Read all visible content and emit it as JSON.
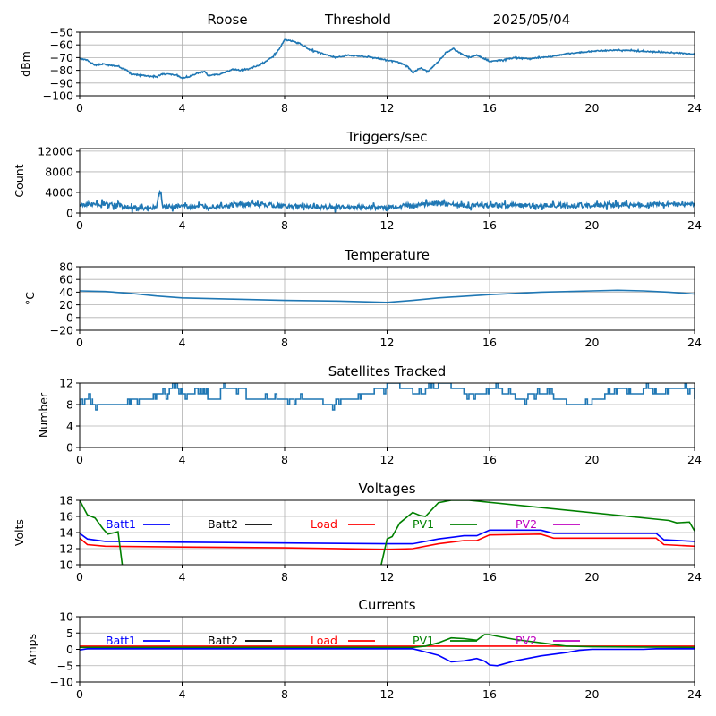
{
  "header": {
    "left": "Roose",
    "center": "Threshold",
    "right": "2025/05/04"
  },
  "colors": {
    "series": "#1f77b4",
    "grid": "#b0b0b0"
  },
  "chart_data": [
    {
      "type": "line",
      "title": "",
      "ylabel": "dBm",
      "xlim": [
        0,
        24
      ],
      "ylim": [
        -100,
        -50
      ],
      "xticks": [
        "0",
        "4",
        "8",
        "12",
        "16",
        "20",
        "24"
      ],
      "yticks": [
        "−100",
        "−90",
        "−80",
        "−70",
        "−60",
        "−50"
      ],
      "series": [
        {
          "color": "#1f77b4",
          "noise": 0.4,
          "x": [
            0,
            0.3,
            0.6,
            0.9,
            1.2,
            1.5,
            1.8,
            2,
            2.5,
            3,
            3.2,
            3.5,
            3.8,
            4,
            4.3,
            4.6,
            4.9,
            5,
            5.5,
            6,
            6.3,
            6.6,
            7,
            7.5,
            7.8,
            8,
            8.3,
            8.6,
            9,
            9.5,
            10,
            10.5,
            11,
            11.5,
            12,
            12.5,
            12.8,
            13,
            13.3,
            13.6,
            14,
            14.3,
            14.6,
            14.9,
            15.2,
            15.5,
            16,
            16.5,
            17,
            17.5,
            18,
            18.5,
            19,
            20,
            21,
            22,
            23,
            24
          ],
          "y": [
            -71,
            -72,
            -76,
            -75,
            -76,
            -77,
            -79,
            -83,
            -84,
            -85,
            -83,
            -83,
            -84,
            -86,
            -85,
            -82,
            -81,
            -84,
            -83,
            -79,
            -80,
            -79,
            -76,
            -70,
            -63,
            -56,
            -57,
            -59,
            -64,
            -67,
            -70,
            -68,
            -69,
            -70,
            -72,
            -74,
            -77,
            -82,
            -78,
            -81,
            -73,
            -66,
            -63,
            -67,
            -70,
            -68,
            -73,
            -72,
            -70,
            -71,
            -70,
            -69,
            -67,
            -65,
            -64,
            -65,
            -66,
            -67
          ]
        }
      ]
    },
    {
      "type": "line",
      "title": "Triggers/sec",
      "ylabel": "Count",
      "xlim": [
        0,
        24
      ],
      "ylim": [
        0,
        12500
      ],
      "xticks": [
        "0",
        "4",
        "8",
        "12",
        "16",
        "20",
        "24"
      ],
      "yticks": [
        "0",
        "4000",
        "8000",
        "12000"
      ],
      "ytick_values": [
        0,
        4000,
        8000,
        12000
      ],
      "series": [
        {
          "color": "#1f77b4",
          "noise": 450,
          "x": [
            0,
            1,
            2,
            3,
            3.15,
            3.25,
            4,
            5,
            6,
            7,
            8,
            9,
            10,
            11,
            12,
            13,
            14,
            15,
            16,
            17,
            18,
            19,
            20,
            21,
            22,
            23,
            24
          ],
          "y": [
            1500,
            1800,
            1000,
            1100,
            4200,
            1200,
            1300,
            1200,
            1500,
            1700,
            1300,
            1200,
            1100,
            1200,
            1000,
            1500,
            2000,
            1400,
            1500,
            1500,
            1400,
            1500,
            1500,
            1600,
            1600,
            1800,
            1600
          ]
        }
      ]
    },
    {
      "type": "line",
      "title": "Temperature",
      "ylabel": "°C",
      "xlim": [
        0,
        24
      ],
      "ylim": [
        -20,
        80
      ],
      "xticks": [
        "0",
        "4",
        "8",
        "12",
        "16",
        "20",
        "24"
      ],
      "yticks": [
        "−20",
        "0",
        "20",
        "40",
        "60",
        "80"
      ],
      "ytick_values": [
        -20,
        0,
        20,
        40,
        60,
        80
      ],
      "series": [
        {
          "color": "#1f77b4",
          "noise": 0,
          "x": [
            0,
            1,
            2,
            3,
            4,
            6,
            8,
            10,
            11,
            12,
            13,
            14,
            16,
            18,
            20,
            21,
            22,
            23,
            24
          ],
          "y": [
            42,
            41,
            38,
            34,
            31,
            29,
            27,
            26,
            25,
            24,
            27,
            31,
            36,
            40,
            42,
            43,
            42,
            40,
            37
          ]
        }
      ]
    },
    {
      "type": "line",
      "title": "Satellites Tracked",
      "ylabel": "Number",
      "xlim": [
        0,
        24
      ],
      "ylim": [
        0,
        12
      ],
      "xticks": [
        "0",
        "4",
        "8",
        "12",
        "16",
        "20",
        "24"
      ],
      "yticks": [
        "0",
        "4",
        "8",
        "12"
      ],
      "ytick_values": [
        0,
        4,
        8,
        12
      ],
      "series": [
        {
          "color": "#1f77b4",
          "step": true,
          "x": [
            0,
            0.2,
            0.5,
            1,
            1.5,
            2,
            2.5,
            3,
            3.5,
            4,
            4.5,
            5,
            5.5,
            6,
            6.5,
            7,
            7.5,
            8,
            8.5,
            9,
            9.5,
            10,
            10.5,
            11,
            11.5,
            12,
            12.5,
            13,
            13.5,
            14,
            14.5,
            15,
            15.5,
            16,
            16.5,
            17,
            17.5,
            18,
            18.5,
            19,
            19.5,
            20,
            20.5,
            21,
            21.5,
            22,
            22.5,
            23,
            23.5,
            24
          ],
          "y": [
            8,
            9,
            8,
            8,
            8,
            9,
            9,
            10,
            11,
            10,
            11,
            9,
            11,
            11,
            9,
            9,
            9,
            9,
            9,
            9,
            8,
            9,
            9,
            10,
            11,
            12,
            11,
            10,
            11,
            12,
            11,
            10,
            10,
            11,
            10,
            9,
            10,
            10,
            9,
            8,
            8,
            9,
            10,
            11,
            10,
            11,
            10,
            11,
            11,
            9
          ]
        }
      ]
    },
    {
      "type": "line",
      "title": "Voltages",
      "ylabel": "Volts",
      "xlim": [
        0,
        24
      ],
      "ylim": [
        10,
        18
      ],
      "xticks": [
        "0",
        "4",
        "8",
        "12",
        "16",
        "20",
        "24"
      ],
      "yticks": [
        "10",
        "12",
        "14",
        "16",
        "18"
      ],
      "ytick_values": [
        10,
        12,
        14,
        16,
        18
      ],
      "legend": [
        "Batt1",
        "Batt2",
        "Load",
        "PV1",
        "PV2"
      ],
      "series": [
        {
          "name": "Batt1",
          "color": "#0000ff",
          "noise": 0,
          "x": [
            0,
            0.3,
            1,
            4,
            8,
            12,
            13,
            14,
            15,
            15.5,
            16,
            18,
            18.5,
            20,
            22.5,
            22.8,
            24
          ],
          "y": [
            13.9,
            13.2,
            12.9,
            12.8,
            12.7,
            12.6,
            12.6,
            13.2,
            13.6,
            13.6,
            14.3,
            14.3,
            13.9,
            13.9,
            13.9,
            13.1,
            12.9
          ]
        },
        {
          "name": "Load",
          "color": "#ff0000",
          "noise": 0,
          "x": [
            0,
            0.3,
            1,
            4,
            8,
            12,
            13,
            14,
            15,
            15.5,
            16,
            18,
            18.5,
            20,
            22.5,
            22.8,
            24
          ],
          "y": [
            13.3,
            12.5,
            12.3,
            12.2,
            12.1,
            11.9,
            12.0,
            12.6,
            13.0,
            13.0,
            13.7,
            13.8,
            13.3,
            13.3,
            13.3,
            12.5,
            12.3
          ]
        },
        {
          "name": "PV1",
          "color": "#008000",
          "noise": 0,
          "x": [
            0,
            0.3,
            0.6,
            0.9,
            1.1,
            1.5,
            1.7,
            1.8,
            11.7,
            12,
            12.2,
            12.5,
            13,
            13.3,
            13.5,
            14,
            14.5,
            15,
            15.2,
            23,
            23.3,
            23.8,
            24
          ],
          "y": [
            18,
            16.2,
            15.8,
            14.5,
            13.8,
            14.1,
            9,
            9,
            9,
            13.2,
            13.5,
            15.2,
            16.5,
            16.1,
            16.0,
            17.7,
            18.0,
            18.0,
            18.0,
            15.5,
            15.2,
            15.3,
            14.2
          ]
        }
      ]
    },
    {
      "type": "line",
      "title": "Currents",
      "ylabel": "Amps",
      "xlim": [
        0,
        24
      ],
      "ylim": [
        -10,
        10
      ],
      "xticks": [
        "0",
        "4",
        "8",
        "12",
        "16",
        "20",
        "24"
      ],
      "yticks": [
        "−10",
        "−5",
        "0",
        "5",
        "10"
      ],
      "ytick_values": [
        -10,
        -5,
        0,
        5,
        10
      ],
      "legend": [
        "Batt1",
        "Batt2",
        "Load",
        "PV1",
        "PV2"
      ],
      "series": [
        {
          "name": "Load",
          "color": "#ff0000",
          "noise": 0,
          "x": [
            0,
            24
          ],
          "y": [
            1.0,
            1.0
          ]
        },
        {
          "name": "PV1",
          "color": "#008000",
          "noise": 0,
          "x": [
            0,
            13,
            13.5,
            14,
            14.5,
            15,
            15.5,
            15.8,
            16,
            16.3,
            17,
            18,
            19,
            20,
            22,
            24
          ],
          "y": [
            0.6,
            0.6,
            1.0,
            2.0,
            3.5,
            3.3,
            2.8,
            4.5,
            4.5,
            4.0,
            3.0,
            2.0,
            1.0,
            0.8,
            0.7,
            0.6
          ]
        },
        {
          "name": "Batt1",
          "color": "#0000ff",
          "noise": 0,
          "x": [
            0,
            0.3,
            13,
            13.5,
            14,
            14.5,
            15,
            15.5,
            15.8,
            16,
            16.3,
            17,
            18,
            19,
            19.5,
            20,
            22,
            22.5,
            23,
            24
          ],
          "y": [
            -0.2,
            0.2,
            0.2,
            -0.8,
            -1.8,
            -3.8,
            -3.5,
            -2.8,
            -3.6,
            -4.8,
            -5.0,
            -3.5,
            -2.0,
            -1.0,
            -0.3,
            0,
            0,
            0.2,
            0.2,
            0.2
          ]
        }
      ]
    }
  ]
}
